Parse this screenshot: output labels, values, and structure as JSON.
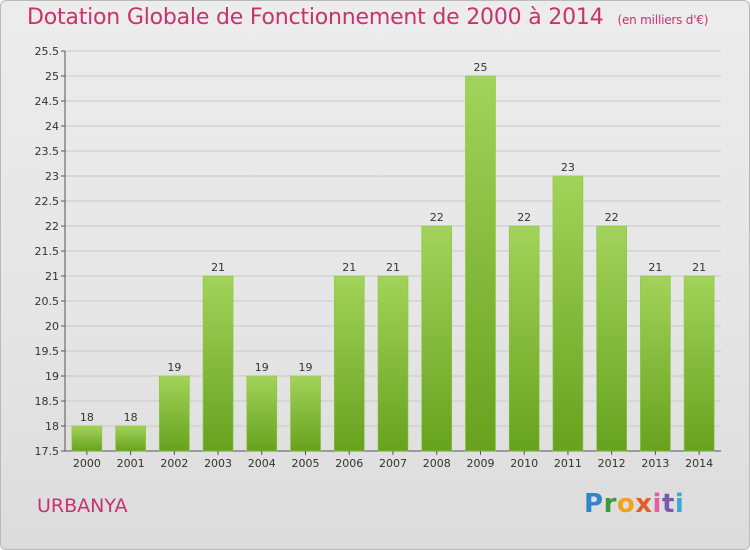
{
  "header": {
    "title": "Dotation Globale de Fonctionnement de 2000 à 2014",
    "unit": "(en milliers d'€)"
  },
  "footer": {
    "commune": "URBANYA",
    "logo_letters": [
      "P",
      "r",
      "o",
      "x",
      "i",
      "t",
      "i"
    ]
  },
  "chart_data": {
    "type": "bar",
    "title": "Dotation Globale de Fonctionnement de 2000 à 2014",
    "subtitle": "(en milliers d'€)",
    "xlabel": "",
    "ylabel": "",
    "categories": [
      "2000",
      "2001",
      "2002",
      "2003",
      "2004",
      "2005",
      "2006",
      "2007",
      "2008",
      "2009",
      "2010",
      "2011",
      "2012",
      "2013",
      "2014"
    ],
    "values": [
      18,
      18,
      19,
      21,
      19,
      19,
      21,
      21,
      22,
      25,
      22,
      23,
      22,
      21,
      21
    ],
    "value_labels": [
      "18",
      "18",
      "19",
      "21",
      "19",
      "19",
      "21",
      "21",
      "22",
      "25",
      "22",
      "23",
      "22",
      "21",
      "21"
    ],
    "ylim": [
      17.5,
      25.5
    ],
    "yticks": [
      "17.5",
      "18",
      "18.5",
      "19",
      "19.5",
      "20",
      "20.5",
      "21",
      "21.5",
      "22",
      "22.5",
      "23",
      "23.5",
      "24",
      "24.5",
      "25",
      "25.5"
    ],
    "ytick_values": [
      17.5,
      18,
      18.5,
      19,
      19.5,
      20,
      20.5,
      21,
      21.5,
      22,
      22.5,
      23,
      23.5,
      24,
      24.5,
      25,
      25.5
    ],
    "grid": true,
    "bar_color_top": "#a2d35a",
    "bar_color_bottom": "#67a21e",
    "title_color": "#c8326e"
  }
}
